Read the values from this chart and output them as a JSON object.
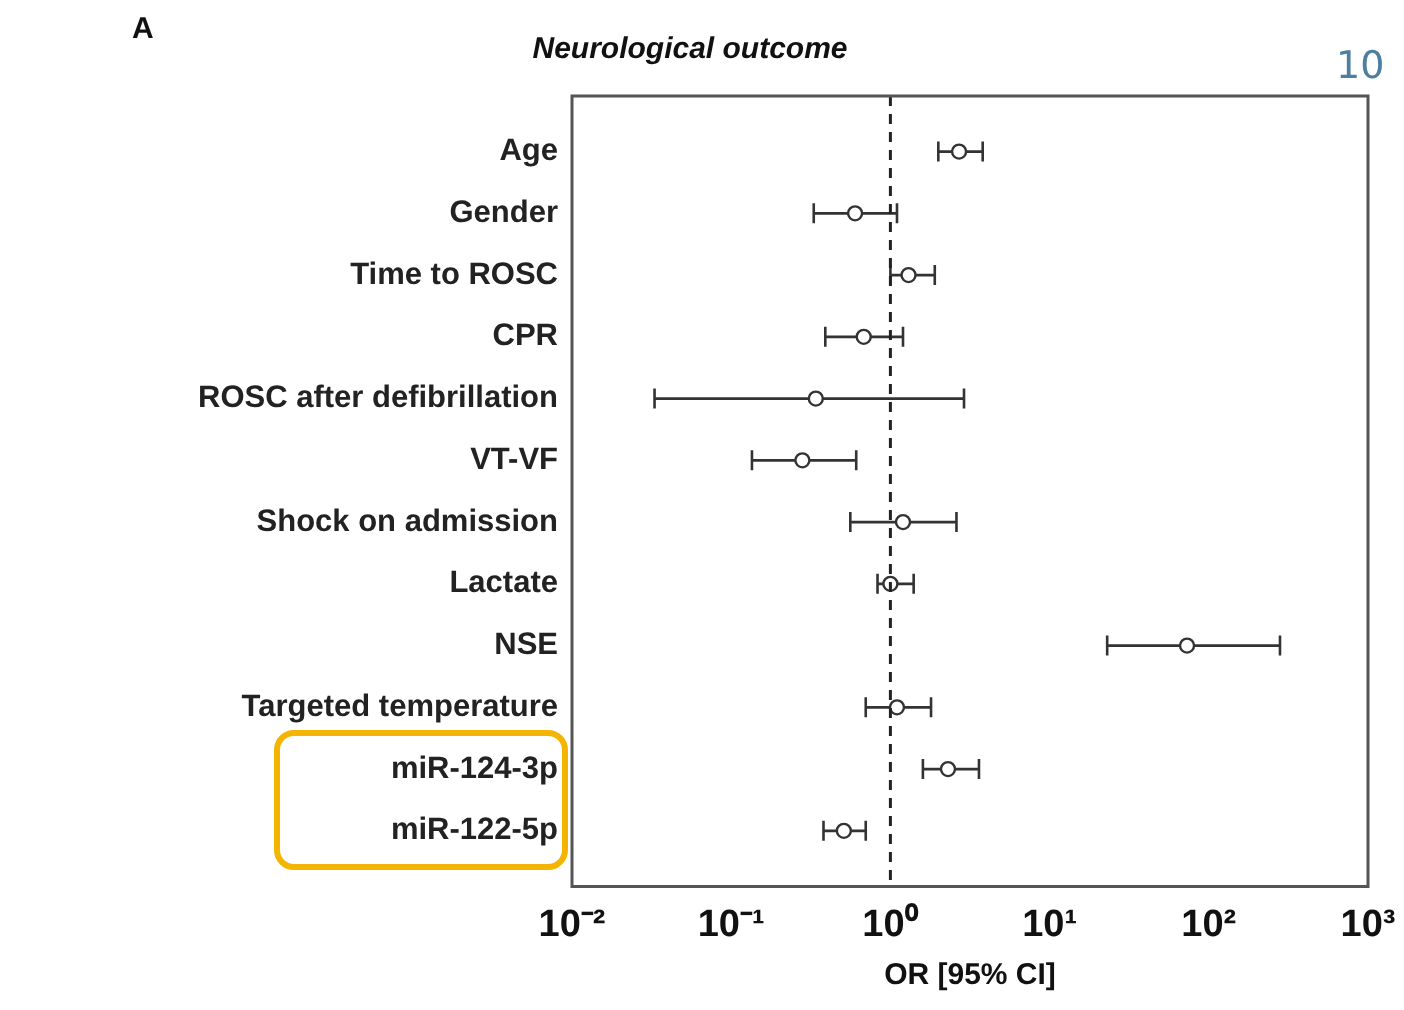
{
  "chart_data": {
    "type": "scatter",
    "title": "Neurological outcome",
    "xlabel": "OR [95% CI]",
    "categories": [
      "Age",
      "Gender",
      "Time to ROSC",
      "CPR",
      "ROSC after defibrillation",
      "VT-VF",
      "Shock on admission",
      "Lactate",
      "NSE",
      "Targeted temperature",
      "miR-124-3p",
      "miR-122-5p"
    ],
    "series": [
      {
        "color": "#333333",
        "values": [
          2.7,
          0.6,
          1.3,
          0.68,
          0.34,
          0.28,
          1.2,
          1.0,
          73,
          1.1,
          2.3,
          0.51
        ],
        "errors": [
          [
            2.0,
            3.8
          ],
          [
            0.33,
            1.1
          ],
          [
            1.0,
            1.9
          ],
          [
            0.39,
            1.2
          ],
          [
            0.033,
            2.9
          ],
          [
            0.135,
            0.61
          ],
          [
            0.56,
            2.6
          ],
          [
            0.83,
            1.4
          ],
          [
            23,
            280
          ],
          [
            0.7,
            1.8
          ],
          [
            1.6,
            3.6
          ],
          [
            0.38,
            0.7
          ]
        ]
      }
    ],
    "orientation": "horizontal",
    "log": "x",
    "xlim": [
      0.01,
      1000
    ],
    "xticks": [
      {
        "value": 0.01,
        "label": "10⁻²"
      },
      {
        "value": 0.1,
        "label": "10⁻¹"
      },
      {
        "value": 1,
        "label": "10⁰"
      },
      {
        "value": 10,
        "label": "10¹"
      },
      {
        "value": 100,
        "label": "10²"
      },
      {
        "value": 1000,
        "label": "10³"
      }
    ],
    "ref_lines": [
      {
        "axis": "x",
        "value": 1,
        "line_style": "dashed",
        "color": "#222222"
      }
    ],
    "annotations": [
      "A",
      "10"
    ],
    "marker": "circle",
    "grid": false,
    "legend": false
  }
}
